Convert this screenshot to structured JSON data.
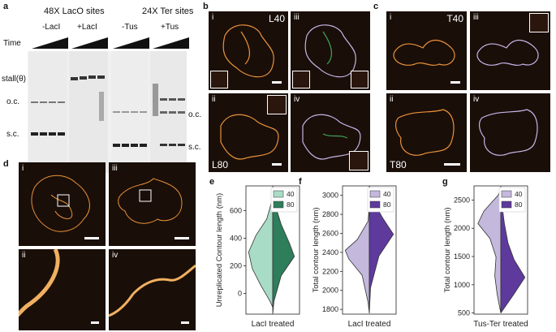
{
  "panel_a": {
    "label": "a",
    "header_lacO": "48X LacO sites",
    "header_ter": "24X Ter sites",
    "cond_minus_lacI": "-LacI",
    "cond_plus_lacI": "+LacI",
    "cond_minus_tus": "-Tus",
    "cond_plus_tus": "+Tus",
    "time_label": "Time",
    "stall_label": "stall(θ)",
    "oc_label": "o.c.",
    "sc_label": "s.c.",
    "oc_label_right": "o.c.",
    "sc_label_right": "s.c."
  },
  "panel_b": {
    "label": "b",
    "sub_i": "i",
    "sub_ii": "ii",
    "sub_iii": "iii",
    "sub_iv": "iv",
    "tag_L40": "L40",
    "tag_L80": "L80"
  },
  "panel_c": {
    "label": "c",
    "sub_i": "i",
    "sub_ii": "ii",
    "sub_iii": "iii",
    "sub_iv": "iv",
    "tag_T40": "T40",
    "tag_T80": "T80"
  },
  "panel_d": {
    "label": "d",
    "sub_i": "i",
    "sub_ii": "ii",
    "sub_iii": "iii",
    "sub_iv": "iv"
  },
  "chart_data": [
    {
      "panel": "e",
      "type": "violin",
      "ylabel": "Unreplicated Contour length (nm)",
      "xlabel": "LacI treated",
      "ylim": [
        -150,
        780
      ],
      "yticks": [
        0,
        200,
        400,
        600
      ],
      "series": [
        {
          "name": "40",
          "color": "#a8dcc6"
        },
        {
          "name": "80",
          "color": "#2e7d5b"
        }
      ],
      "legend": "top-right"
    },
    {
      "panel": "f",
      "type": "violin",
      "ylabel": "Total contour length (nm)",
      "xlabel": "LacI treated",
      "ylim": [
        1750,
        3100
      ],
      "yticks": [
        1800,
        2000,
        2200,
        2400,
        2600,
        2800,
        3000
      ],
      "series": [
        {
          "name": "40",
          "color": "#c4b8dd"
        },
        {
          "name": "80",
          "color": "#5e3a9c"
        }
      ],
      "legend": "top-right"
    },
    {
      "panel": "g",
      "type": "violin",
      "ylabel": "Total contour length (nm)",
      "xlabel": "Tus-Ter treated",
      "ylim": [
        480,
        2750
      ],
      "yticks": [
        500,
        1000,
        1500,
        2000,
        2500
      ],
      "series": [
        {
          "name": "40",
          "color": "#c4b8dd"
        },
        {
          "name": "80",
          "color": "#5e3a9c"
        }
      ],
      "legend": "top-right"
    }
  ]
}
